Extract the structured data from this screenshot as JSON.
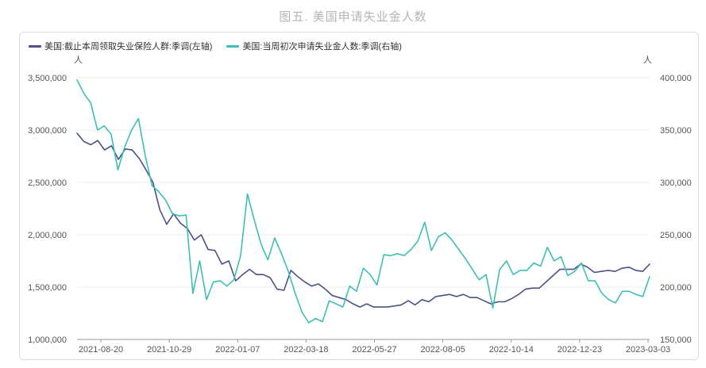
{
  "chart_data": {
    "type": "line",
    "title": "图五. 美国申请失业金人数",
    "left_unit": "人",
    "right_unit": "人",
    "left_axis": {
      "min": 1000000,
      "max": 3500000,
      "ticks": [
        "1,000,000",
        "1,500,000",
        "2,000,000",
        "2,500,000",
        "3,000,000",
        "3,500,000"
      ]
    },
    "right_axis": {
      "min": 150000,
      "max": 400000,
      "ticks": [
        "150,000",
        "200,000",
        "250,000",
        "300,000",
        "350,000",
        "400,000"
      ]
    },
    "x_tick_labels": [
      "2021-08-20",
      "2021-10-29",
      "2022-01-07",
      "2022-03-18",
      "2022-05-27",
      "2022-08-05",
      "2022-10-14",
      "2022-12-23",
      "2023-03-03"
    ],
    "grid": true,
    "legend_position": "top-left",
    "series": [
      {
        "name": "美国:截止本周领取失业保险人群:季调(左轴)",
        "axis": "left",
        "color": "#4b5286",
        "values": [
          2970000,
          2890000,
          2860000,
          2900000,
          2810000,
          2850000,
          2720000,
          2820000,
          2810000,
          2730000,
          2620000,
          2500000,
          2240000,
          2100000,
          2200000,
          2110000,
          2060000,
          1950000,
          2000000,
          1860000,
          1850000,
          1720000,
          1750000,
          1560000,
          1620000,
          1670000,
          1620000,
          1620000,
          1590000,
          1480000,
          1470000,
          1660000,
          1600000,
          1550000,
          1510000,
          1530000,
          1480000,
          1420000,
          1400000,
          1380000,
          1340000,
          1310000,
          1340000,
          1310000,
          1310000,
          1310000,
          1320000,
          1330000,
          1370000,
          1330000,
          1380000,
          1360000,
          1410000,
          1420000,
          1430000,
          1410000,
          1430000,
          1400000,
          1400000,
          1370000,
          1340000,
          1360000,
          1360000,
          1390000,
          1430000,
          1480000,
          1490000,
          1490000,
          1550000,
          1610000,
          1670000,
          1670000,
          1670000,
          1720000,
          1690000,
          1640000,
          1650000,
          1660000,
          1650000,
          1680000,
          1690000,
          1660000,
          1650000,
          1720000
        ]
      },
      {
        "name": "美国:当周初次申请失业金人数:季调(右轴)",
        "axis": "right",
        "color": "#3ebfb4",
        "values": [
          398000,
          385000,
          376000,
          350000,
          354000,
          346000,
          312000,
          334000,
          350000,
          361000,
          326000,
          297000,
          291000,
          283000,
          270000,
          268000,
          269000,
          194000,
          225000,
          188000,
          205000,
          206000,
          201000,
          207000,
          230000,
          289000,
          264000,
          241000,
          226000,
          247000,
          232000,
          215000,
          194000,
          176000,
          166000,
          170000,
          167000,
          187000,
          184000,
          181000,
          201000,
          196000,
          218000,
          212000,
          202000,
          231000,
          230000,
          232000,
          230000,
          236000,
          244000,
          262000,
          235000,
          248000,
          252000,
          245000,
          236000,
          227000,
          217000,
          207000,
          212000,
          180000,
          217000,
          225000,
          212000,
          216000,
          216000,
          223000,
          220000,
          238000,
          225000,
          229000,
          211000,
          215000,
          223000,
          206000,
          206000,
          194000,
          188000,
          185000,
          196000,
          196000,
          193000,
          191000,
          210000
        ]
      }
    ]
  }
}
